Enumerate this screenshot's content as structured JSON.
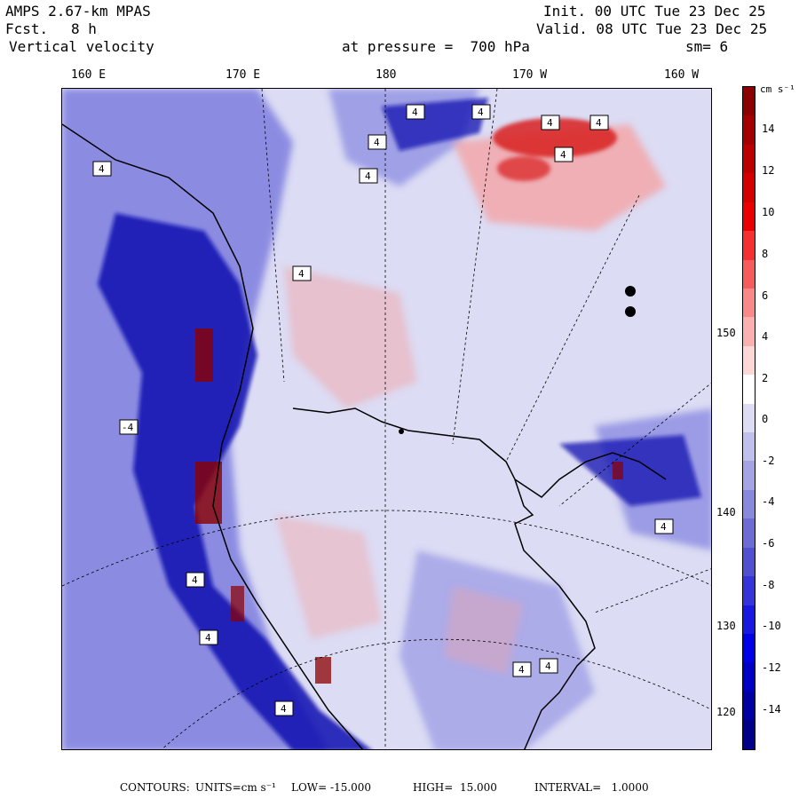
{
  "header": {
    "model": "AMPS 2.67-km MPAS",
    "forecast_label": "Fcst.",
    "forecast_value": "8 h",
    "field": "Vertical velocity",
    "init": "Init. 00 UTC Tue 23 Dec 25",
    "valid": "Valid. 08 UTC Tue 23 Dec 25",
    "level": "at pressure =  700 hPa",
    "smoothing": "sm= 6"
  },
  "lon_labels": [
    "160 E",
    "170 E",
    "180",
    "170 W",
    "160 W"
  ],
  "lat_labels": [
    "150 W",
    "140 W",
    "130 W",
    "120 W"
  ],
  "colorbar": {
    "units": "cm s⁻¹",
    "ticks": [
      "14",
      "12",
      "10",
      "8",
      "6",
      "4",
      "2",
      "0",
      "-2",
      "-4",
      "-6",
      "-8",
      "-10",
      "-12",
      "-14"
    ],
    "colors": [
      "#8b0000",
      "#a30000",
      "#bc0000",
      "#d40000",
      "#ea0000",
      "#f53030",
      "#f75c5c",
      "#f98888",
      "#fbb0b0",
      "#fdd6d6",
      "#ffffff",
      "#dcdcf4",
      "#c0c0ec",
      "#a4a4e4",
      "#8888dc",
      "#6c6cd4",
      "#5050d0",
      "#3434d8",
      "#1818e0",
      "#0000e6",
      "#0000c4",
      "#0000a2",
      "#000088"
    ]
  },
  "map": {
    "contour_label": "4",
    "neutral_color": "#dcdcf4",
    "positive_color": "#f5a0a0",
    "strong_positive_color": "#d82020",
    "negative_color": "#7070dc",
    "strong_negative_color": "#1010b0",
    "extreme_color": "#8b0000",
    "coast_color": "#000000"
  },
  "footer": {
    "contours": "CONTOURS:",
    "units": "UNITS=cm s⁻¹",
    "low": "LOW= -15.000",
    "high": "HIGH=  15.000",
    "interval": "INTERVAL=   1.0000"
  }
}
